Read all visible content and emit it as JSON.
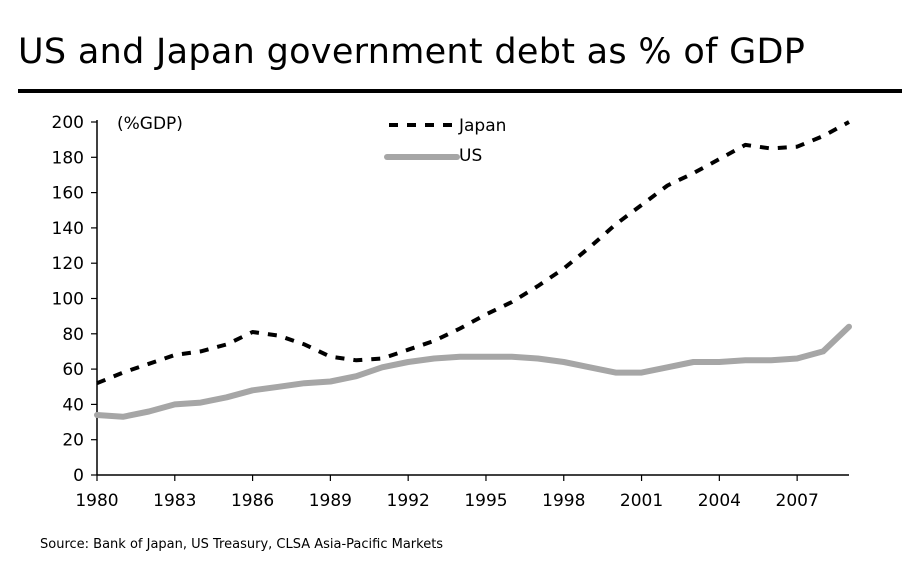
{
  "title": "US and Japan government debt as % of GDP",
  "source": "Source: Bank of Japan, US Treasury, CLSA Asia-Pacific Markets",
  "chart_data": {
    "type": "line",
    "title": "US and Japan government debt as % of GDP",
    "ylabel": "(%GDP)",
    "xlabel": "",
    "ylim": [
      0,
      200
    ],
    "yticks": [
      0,
      20,
      40,
      60,
      80,
      100,
      120,
      140,
      160,
      180,
      200
    ],
    "xlim": [
      1980,
      2009
    ],
    "xticks": [
      1980,
      1983,
      1986,
      1989,
      1992,
      1995,
      1998,
      2001,
      2004,
      2007
    ],
    "grid": false,
    "legend": "top-center",
    "x": [
      1980,
      1981,
      1982,
      1983,
      1984,
      1985,
      1986,
      1987,
      1988,
      1989,
      1990,
      1991,
      1992,
      1993,
      1994,
      1995,
      1996,
      1997,
      1998,
      1999,
      2000,
      2001,
      2002,
      2003,
      2004,
      2005,
      2006,
      2007,
      2008,
      2009
    ],
    "series": [
      {
        "name": "Japan",
        "style": "dashed",
        "color": "#000000",
        "values": [
          52,
          58,
          63,
          68,
          70,
          74,
          81,
          79,
          74,
          67,
          65,
          66,
          71,
          76,
          83,
          91,
          98,
          107,
          117,
          129,
          142,
          153,
          164,
          171,
          179,
          187,
          185,
          186,
          192,
          200
        ]
      },
      {
        "name": "US",
        "style": "solid",
        "color": "#a6a6a6",
        "values": [
          34,
          33,
          36,
          40,
          41,
          44,
          48,
          50,
          52,
          53,
          56,
          61,
          64,
          66,
          67,
          67,
          67,
          66,
          64,
          61,
          58,
          58,
          61,
          64,
          64,
          65,
          65,
          66,
          70,
          84
        ]
      }
    ]
  }
}
